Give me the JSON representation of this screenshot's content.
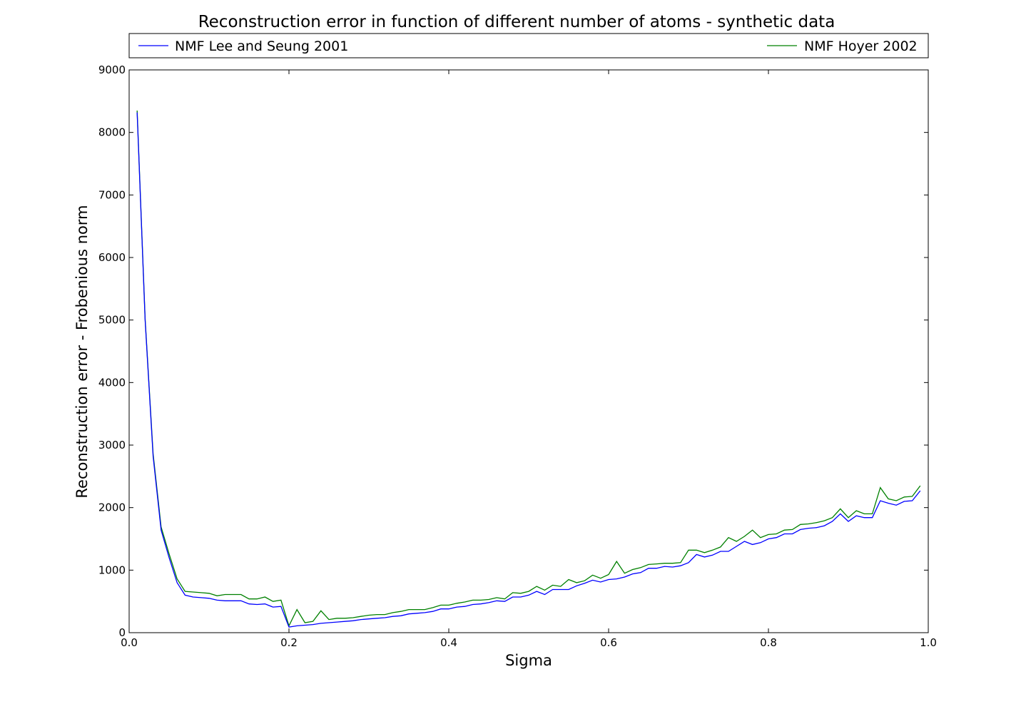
{
  "chart_data": {
    "type": "line",
    "title": "Reconstruction error in function of different number of atoms - synthetic data",
    "xlabel": "Sigma",
    "ylabel": "Reconstruction error - Frobenious norm",
    "xlim": [
      0.0,
      1.0
    ],
    "ylim": [
      0,
      9000
    ],
    "xticks": [
      "0.0",
      "0.2",
      "0.4",
      "0.6",
      "0.8",
      "1.0"
    ],
    "yticks": [
      "0",
      "1000",
      "2000",
      "3000",
      "4000",
      "5000",
      "6000",
      "7000",
      "8000",
      "9000"
    ],
    "grid": false,
    "legend_position": "top",
    "x": [
      0.01,
      0.02,
      0.03,
      0.04,
      0.05,
      0.06,
      0.07,
      0.08,
      0.09,
      0.1,
      0.11,
      0.12,
      0.13,
      0.14,
      0.15,
      0.16,
      0.17,
      0.18,
      0.19,
      0.2,
      0.21,
      0.22,
      0.23,
      0.24,
      0.25,
      0.26,
      0.27,
      0.28,
      0.29,
      0.3,
      0.31,
      0.32,
      0.33,
      0.34,
      0.35,
      0.36,
      0.37,
      0.38,
      0.39,
      0.4,
      0.41,
      0.42,
      0.43,
      0.44,
      0.45,
      0.46,
      0.47,
      0.48,
      0.49,
      0.5,
      0.51,
      0.52,
      0.53,
      0.54,
      0.55,
      0.56,
      0.57,
      0.58,
      0.59,
      0.6,
      0.61,
      0.62,
      0.63,
      0.64,
      0.65,
      0.66,
      0.67,
      0.68,
      0.69,
      0.7,
      0.71,
      0.72,
      0.73,
      0.74,
      0.75,
      0.76,
      0.77,
      0.78,
      0.79,
      0.8,
      0.81,
      0.82,
      0.83,
      0.84,
      0.85,
      0.86,
      0.87,
      0.88,
      0.89,
      0.9,
      0.91,
      0.92,
      0.93,
      0.94,
      0.95,
      0.96,
      0.97,
      0.98,
      0.99
    ],
    "series": [
      {
        "name": "NMF Lee and Seung 2001",
        "color": "#0000ff",
        "values": [
          8320,
          5000,
          2820,
          1640,
          1200,
          800,
          600,
          570,
          560,
          550,
          520,
          510,
          510,
          510,
          460,
          450,
          460,
          410,
          420,
          90,
          110,
          120,
          130,
          150,
          160,
          170,
          180,
          190,
          210,
          220,
          230,
          240,
          260,
          270,
          300,
          310,
          320,
          340,
          380,
          380,
          410,
          420,
          450,
          460,
          480,
          510,
          500,
          570,
          570,
          600,
          660,
          610,
          690,
          690,
          690,
          750,
          790,
          840,
          810,
          850,
          860,
          890,
          940,
          960,
          1030,
          1030,
          1060,
          1050,
          1070,
          1120,
          1250,
          1210,
          1240,
          1300,
          1300,
          1380,
          1460,
          1410,
          1440,
          1500,
          1520,
          1580,
          1580,
          1650,
          1670,
          1680,
          1710,
          1780,
          1900,
          1780,
          1870,
          1840,
          1840,
          2110,
          2070,
          2040,
          2100,
          2110,
          2270
        ]
      },
      {
        "name": "NMF Hoyer 2002",
        "color": "#008000",
        "values": [
          8350,
          5020,
          2860,
          1690,
          1260,
          860,
          660,
          650,
          640,
          630,
          590,
          610,
          610,
          610,
          540,
          540,
          570,
          500,
          520,
          110,
          370,
          160,
          180,
          350,
          210,
          230,
          230,
          240,
          260,
          280,
          290,
          290,
          320,
          340,
          370,
          370,
          370,
          400,
          440,
          440,
          470,
          490,
          520,
          520,
          530,
          560,
          540,
          640,
          630,
          660,
          740,
          680,
          760,
          740,
          850,
          800,
          830,
          920,
          870,
          930,
          1140,
          950,
          1010,
          1040,
          1090,
          1100,
          1110,
          1110,
          1120,
          1320,
          1320,
          1280,
          1320,
          1370,
          1520,
          1460,
          1540,
          1640,
          1520,
          1570,
          1580,
          1640,
          1650,
          1730,
          1740,
          1760,
          1790,
          1840,
          1980,
          1840,
          1950,
          1900,
          1900,
          2320,
          2140,
          2110,
          2170,
          2180,
          2350
        ]
      }
    ]
  }
}
